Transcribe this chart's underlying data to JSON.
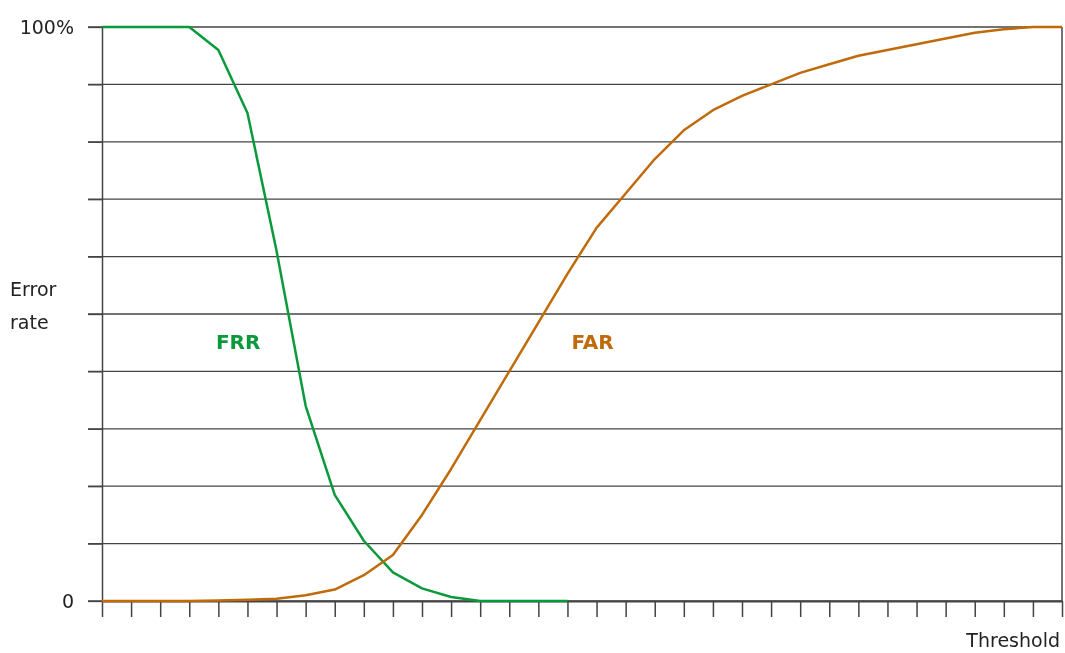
{
  "chart_data": {
    "type": "line",
    "xlabel": "Threshold",
    "ylabel": "Error rate",
    "categories": [
      null,
      null,
      null,
      null,
      null,
      null,
      null,
      null,
      null,
      null,
      null,
      null,
      null,
      null,
      null,
      null,
      null,
      null,
      null,
      null,
      null,
      null,
      null,
      null,
      null,
      null,
      null,
      null,
      null,
      null,
      null,
      null,
      null,
      null
    ],
    "ylim": [
      0,
      100
    ],
    "yticks": [
      {
        "value": 0,
        "label": "0"
      },
      {
        "value": 10,
        "label": null
      },
      {
        "value": 20,
        "label": null
      },
      {
        "value": 30,
        "label": null
      },
      {
        "value": 40,
        "label": null
      },
      {
        "value": 50,
        "label": null
      },
      {
        "value": 60,
        "label": null
      },
      {
        "value": 70,
        "label": null
      },
      {
        "value": 80,
        "label": null
      },
      {
        "value": 90,
        "label": null
      },
      {
        "value": 100,
        "label": "100%"
      }
    ],
    "grid": "y",
    "line_style": "solid",
    "series": [
      {
        "name": "FRR",
        "color": "#0a9a3c",
        "values": [
          100,
          100,
          100,
          100,
          96,
          85,
          61,
          34,
          18.5,
          10.5,
          5,
          2.2,
          0.7,
          0,
          0,
          0,
          0,
          null,
          null,
          null,
          null,
          null,
          null,
          null,
          null,
          null,
          null,
          null,
          null,
          null,
          null,
          null,
          null,
          null
        ]
      },
      {
        "name": "FAR",
        "color": "#c06a0a",
        "values": [
          0,
          0,
          0,
          0,
          0.1,
          0.2,
          0.4,
          1,
          2,
          4.5,
          8,
          15,
          23,
          31.5,
          40,
          48.5,
          57,
          65,
          71,
          77,
          82,
          85.5,
          88,
          90,
          92,
          93.5,
          95,
          96,
          97,
          98,
          99,
          99.6,
          100,
          100
        ]
      }
    ]
  }
}
